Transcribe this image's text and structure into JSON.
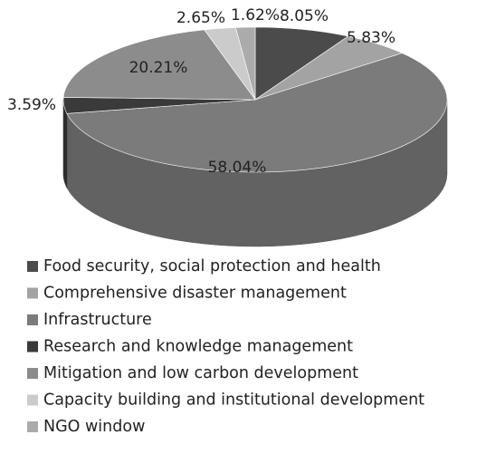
{
  "chart_data": {
    "type": "pie",
    "categories": [
      "Food security, social protection and health",
      "Comprehensive disaster management",
      "Infrastructure",
      "Research and knowledge management",
      "Mitigation and low carbon development",
      "Capacity building and institutional development",
      "NGO window"
    ],
    "values": [
      8.05,
      5.83,
      58.04,
      3.59,
      20.21,
      2.65,
      1.62
    ],
    "value_labels": [
      "8.05%",
      "5.83%",
      "58.04%",
      "3.59%",
      "20.21%",
      "2.65%",
      "1.62%"
    ],
    "colors": [
      "#4b4b4b",
      "#a3a3a3",
      "#7b7b7b",
      "#3a3a3a",
      "#8c8c8c",
      "#cbcbcb",
      "#ababab"
    ],
    "legend": "bottom"
  }
}
